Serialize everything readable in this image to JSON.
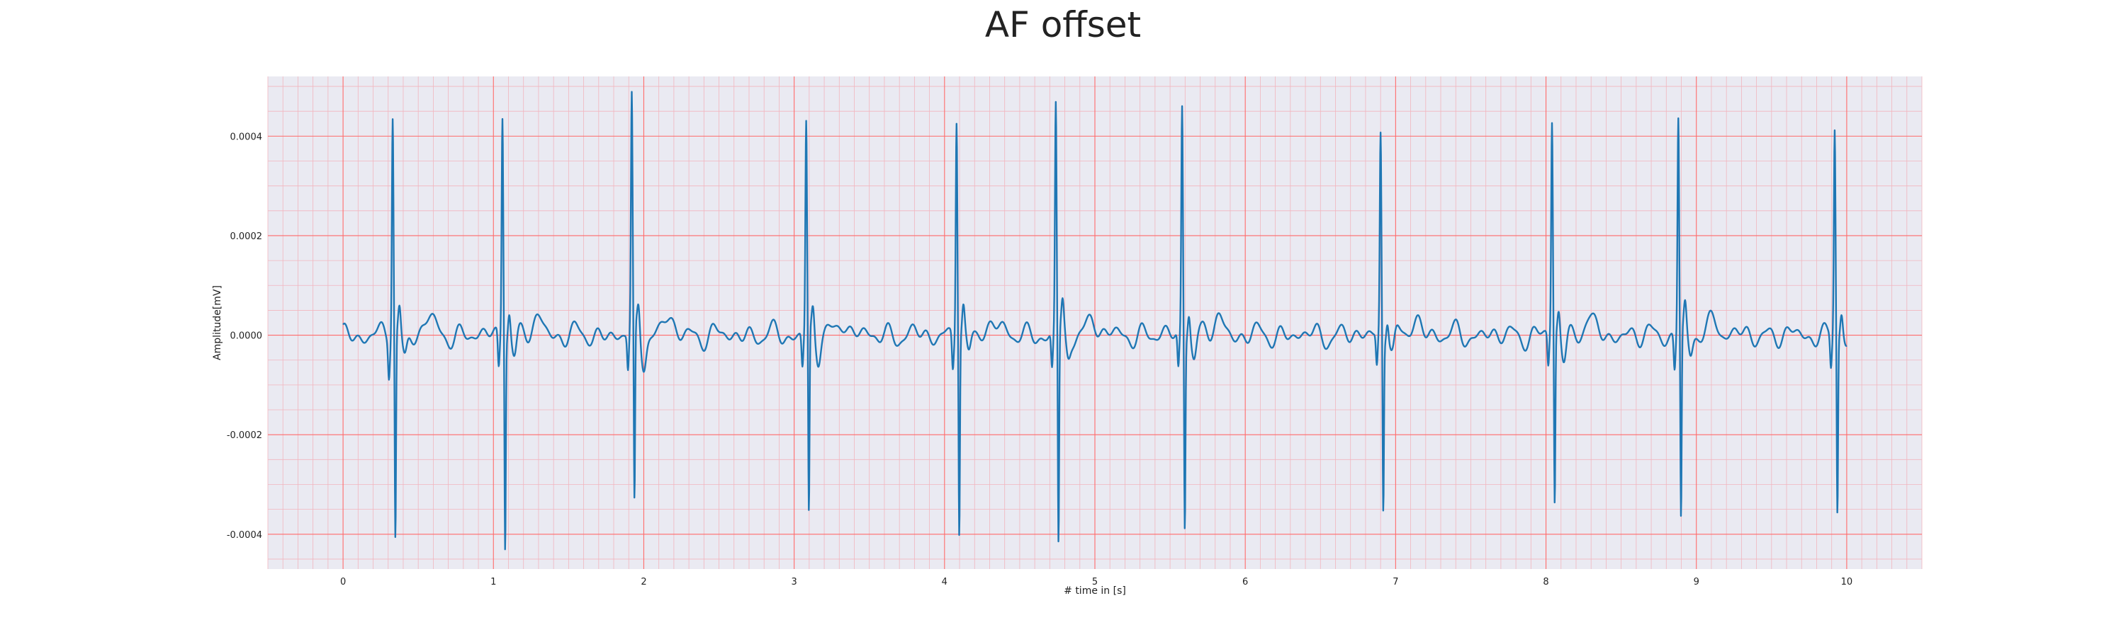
{
  "colors": {
    "background": "#ffffff",
    "plot_background": "#eaeaf2",
    "major_grid": "#ff6b6b",
    "minor_grid": "#f2b5be",
    "line": "#1f77b4",
    "text": "#222222"
  },
  "chart_data": {
    "type": "line",
    "title": "AF offset",
    "xlabel": "# time in [s]",
    "ylabel": "Amplitude[mV]",
    "xlim": [
      -0.5,
      10.5
    ],
    "ylim": [
      -0.00047,
      0.00052
    ],
    "x_ticks": [
      0,
      1,
      2,
      3,
      4,
      5,
      6,
      7,
      8,
      9,
      10
    ],
    "x_tick_labels": [
      "0",
      "1",
      "2",
      "3",
      "4",
      "5",
      "6",
      "7",
      "8",
      "9",
      "10"
    ],
    "y_ticks": [
      -0.0004,
      -0.0002,
      0.0,
      0.0002,
      0.0004
    ],
    "y_tick_labels": [
      "-0.0004",
      "-0.0002",
      "0.0000",
      "0.0002",
      "0.0004"
    ],
    "grid": "major and minor (ECG paper style)",
    "legend": "none",
    "x_range": [
      0,
      10
    ],
    "beats": [
      {
        "t": 0.33,
        "r": 0.00045,
        "s": -0.00041
      },
      {
        "t": 1.06,
        "r": 0.000455,
        "s": -0.00041
      },
      {
        "t": 1.92,
        "r": 0.00047,
        "s": -0.00036
      },
      {
        "t": 3.08,
        "r": 0.00043,
        "s": -0.000365
      },
      {
        "t": 4.08,
        "r": 0.00045,
        "s": -0.000385
      },
      {
        "t": 4.74,
        "r": 0.000465,
        "s": -0.000425
      },
      {
        "t": 5.58,
        "r": 0.000465,
        "s": -0.000375
      },
      {
        "t": 6.9,
        "r": 0.00041,
        "s": -0.00034
      },
      {
        "t": 8.04,
        "r": 0.00043,
        "s": -0.00034
      },
      {
        "t": 8.88,
        "r": 0.000445,
        "s": -0.00037
      },
      {
        "t": 9.92,
        "r": 0.00042,
        "s": -0.00035
      }
    ]
  }
}
